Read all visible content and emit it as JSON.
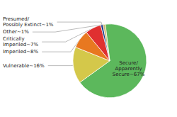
{
  "chart_data": {
    "type": "pie",
    "values": [
      67,
      16,
      8,
      7,
      1,
      1
    ],
    "value_labels": [
      "Secure/\nApparently\nSecure~67%",
      "Vulnerable~16%",
      "Imperiled~8%",
      "Critically\nImperiled~7%",
      "Presumed/\nPossibly Extinct~1%",
      "Other~1%"
    ],
    "colors": [
      "#5cb85c",
      "#d4c84a",
      "#e87820",
      "#e03030",
      "#1a3a8c",
      "#c8b870"
    ]
  }
}
